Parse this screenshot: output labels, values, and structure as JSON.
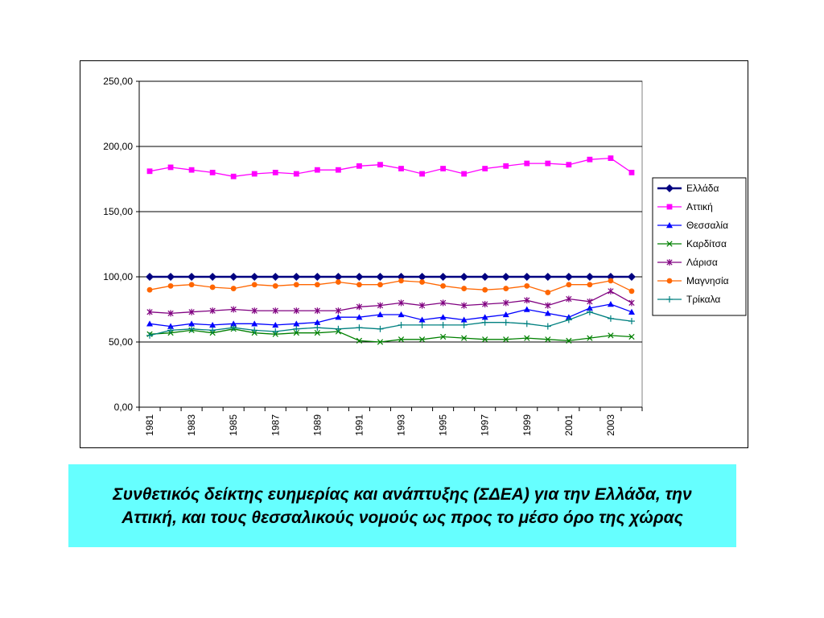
{
  "caption": "Συνθετικός δείκτης ευημερίας και ανάπτυξης (ΣΔΕΑ) για την Ελλάδα, την Αττική, και τους θεσσαλικούς νομούς ως προς το μέσο όρο της χώρας",
  "chart_data": {
    "type": "line",
    "title": "",
    "xlabel": "",
    "ylabel": "",
    "ylim": [
      0,
      250
    ],
    "yticks": [
      "0,00",
      "50,00",
      "100,00",
      "150,00",
      "200,00",
      "250,00"
    ],
    "ytick_values": [
      0,
      50,
      100,
      150,
      200,
      250
    ],
    "x": [
      1981,
      1982,
      1983,
      1984,
      1985,
      1986,
      1987,
      1988,
      1989,
      1990,
      1991,
      1992,
      1993,
      1994,
      1995,
      1996,
      1997,
      1998,
      1999,
      2000,
      2001,
      2002,
      2003,
      2004
    ],
    "xtick_labels": [
      "1981",
      "1983",
      "1985",
      "1987",
      "1989",
      "1991",
      "1993",
      "1995",
      "1997",
      "1999",
      "2001",
      "2003"
    ],
    "grid": "horizontal",
    "legend_position": "right",
    "series": [
      {
        "name": "Ελλάδα",
        "color": "#000080",
        "marker": "diamond",
        "values": [
          100,
          100,
          100,
          100,
          100,
          100,
          100,
          100,
          100,
          100,
          100,
          100,
          100,
          100,
          100,
          100,
          100,
          100,
          100,
          100,
          100,
          100,
          100,
          100
        ]
      },
      {
        "name": "Αττική",
        "color": "#ff00ff",
        "marker": "square",
        "values": [
          181,
          184,
          182,
          180,
          177,
          179,
          180,
          179,
          182,
          182,
          185,
          186,
          183,
          179,
          183,
          179,
          183,
          185,
          187,
          187,
          186,
          190,
          191,
          180
        ]
      },
      {
        "name": "Θεσσαλία",
        "color": "#0000ff",
        "marker": "triangle",
        "values": [
          64,
          62,
          64,
          63,
          64,
          64,
          63,
          64,
          65,
          69,
          69,
          71,
          71,
          67,
          69,
          67,
          69,
          71,
          75,
          72,
          69,
          76,
          79,
          73
        ]
      },
      {
        "name": "Καρδίτσα",
        "color": "#008000",
        "marker": "x",
        "values": [
          56,
          57,
          59,
          57,
          60,
          57,
          56,
          57,
          57,
          58,
          51,
          50,
          52,
          52,
          54,
          53,
          52,
          52,
          53,
          52,
          51,
          53,
          55,
          54
        ]
      },
      {
        "name": "Λάρισα",
        "color": "#800080",
        "marker": "star",
        "values": [
          73,
          72,
          73,
          74,
          75,
          74,
          74,
          74,
          74,
          74,
          77,
          78,
          80,
          78,
          80,
          78,
          79,
          80,
          82,
          78,
          83,
          81,
          89,
          80
        ]
      },
      {
        "name": "Μαγνησία",
        "color": "#ff6600",
        "marker": "circle",
        "values": [
          90,
          93,
          94,
          92,
          91,
          94,
          93,
          94,
          94,
          96,
          94,
          94,
          97,
          96,
          93,
          91,
          90,
          91,
          93,
          88,
          94,
          94,
          97,
          89
        ]
      },
      {
        "name": "Τρίκαλα",
        "color": "#008080",
        "marker": "plus",
        "values": [
          55,
          59,
          60,
          59,
          61,
          59,
          58,
          60,
          61,
          60,
          61,
          60,
          63,
          63,
          63,
          63,
          65,
          65,
          64,
          62,
          67,
          73,
          68,
          66
        ]
      }
    ]
  }
}
